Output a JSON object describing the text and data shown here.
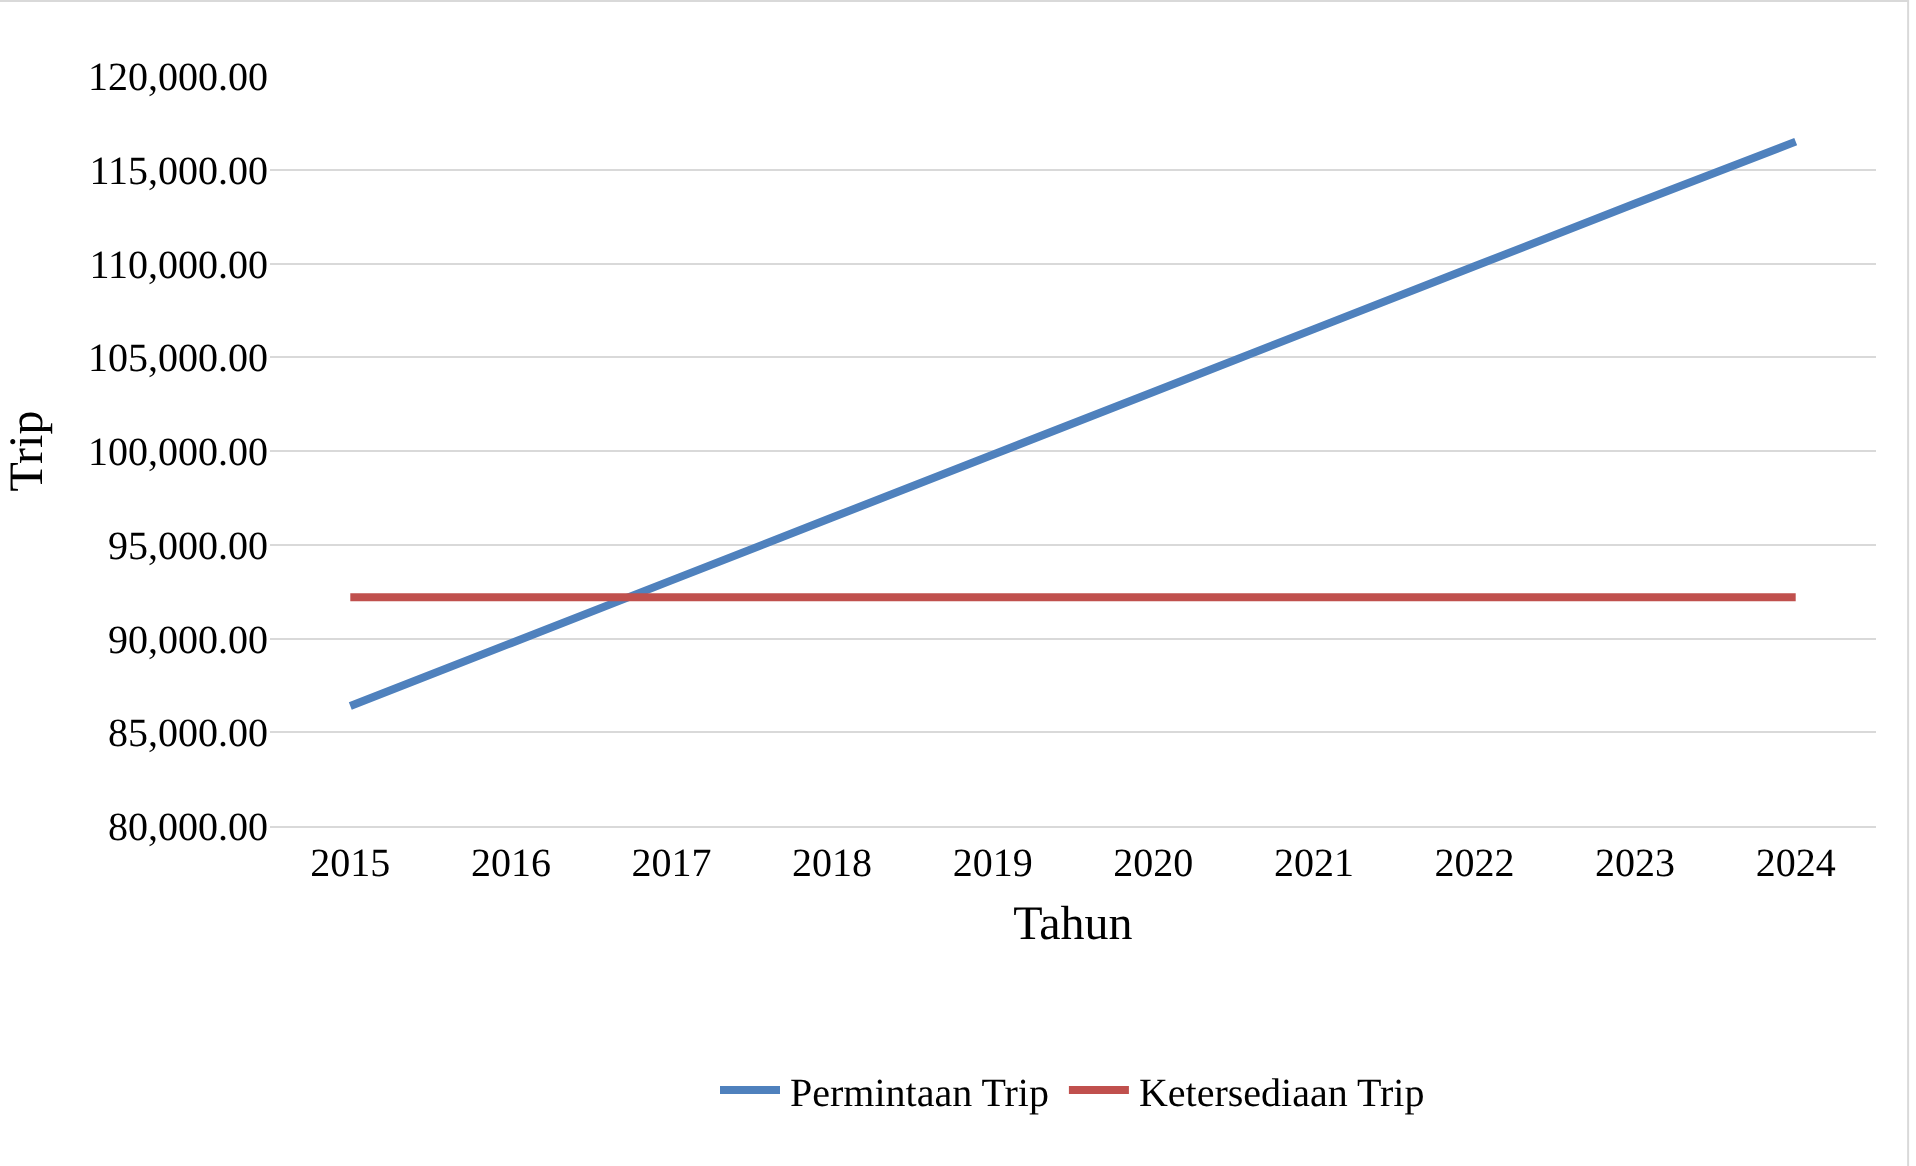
{
  "chart_data": {
    "type": "line",
    "xlabel": "Tahun",
    "ylabel": "Trip",
    "categories": [
      "2015",
      "2016",
      "2017",
      "2018",
      "2019",
      "2020",
      "2021",
      "2022",
      "2023",
      "2024"
    ],
    "series": [
      {
        "name": "Permintaan Trip",
        "color": "#4f81bd",
        "values": [
          86400,
          89750,
          93100,
          96450,
          99800,
          103150,
          106500,
          109850,
          113200,
          116500
        ]
      },
      {
        "name": "Ketersediaan Trip",
        "color": "#c0504d",
        "values": [
          92200,
          92200,
          92200,
          92200,
          92200,
          92200,
          92200,
          92200,
          92200,
          92200
        ]
      }
    ],
    "ylim": [
      80000,
      120000
    ],
    "yticks": [
      {
        "value": 80000,
        "label": "80,000.00"
      },
      {
        "value": 85000,
        "label": "85,000.00"
      },
      {
        "value": 90000,
        "label": "90,000.00"
      },
      {
        "value": 95000,
        "label": "95,000.00"
      },
      {
        "value": 100000,
        "label": "100,000.00"
      },
      {
        "value": 105000,
        "label": "105,000.00"
      },
      {
        "value": 110000,
        "label": "110,000.00"
      },
      {
        "value": 115000,
        "label": "115,000.00"
      },
      {
        "value": 120000,
        "label": "120,000.00"
      }
    ],
    "grid": "y",
    "legend": "bottom",
    "marker": "none",
    "line_style": "solid"
  }
}
